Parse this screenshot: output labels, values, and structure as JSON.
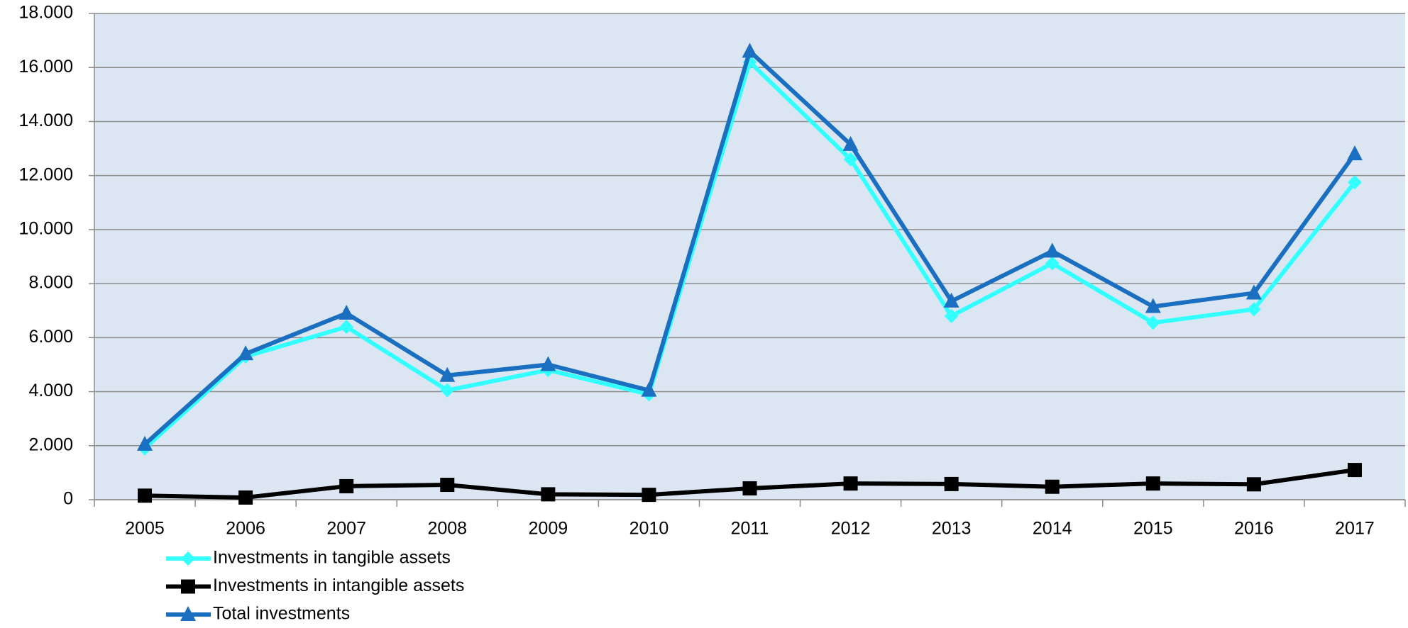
{
  "chart_data": {
    "type": "line",
    "categories": [
      "2005",
      "2006",
      "2007",
      "2008",
      "2009",
      "2010",
      "2011",
      "2012",
      "2013",
      "2014",
      "2015",
      "2016",
      "2017"
    ],
    "series": [
      {
        "name": "Investments in tangible assets",
        "color": "#33ffff",
        "marker": "diamond",
        "values": [
          1900,
          5300,
          6400,
          4050,
          4800,
          3900,
          16200,
          12600,
          6800,
          8750,
          6550,
          7050,
          11750
        ]
      },
      {
        "name": "Investments in intangible assets",
        "color": "#000000",
        "marker": "square",
        "values": [
          150,
          80,
          500,
          550,
          200,
          180,
          420,
          600,
          580,
          480,
          600,
          570,
          1100
        ]
      },
      {
        "name": "Total investments",
        "color": "#1a6fc0",
        "marker": "triangle",
        "values": [
          2050,
          5400,
          6900,
          4600,
          5000,
          4050,
          16600,
          13150,
          7350,
          9200,
          7150,
          7650,
          12800
        ]
      }
    ],
    "ylim": [
      0,
      18000
    ],
    "yticks": [
      0,
      {
        "value": 2000,
        "label": "2.000"
      },
      {
        "value": 4000,
        "label": "4.000"
      },
      {
        "value": 6000,
        "label": "6.000"
      },
      {
        "value": 8000,
        "label": "8.000"
      },
      {
        "value": 10000,
        "label": "10.000"
      },
      {
        "value": 12000,
        "label": "12.000"
      },
      {
        "value": 14000,
        "label": "14.000"
      },
      {
        "value": 16000,
        "label": "16.000"
      },
      {
        "value": 18000,
        "label": "18.000"
      }
    ],
    "grid": true,
    "legend": "bottom-left"
  }
}
